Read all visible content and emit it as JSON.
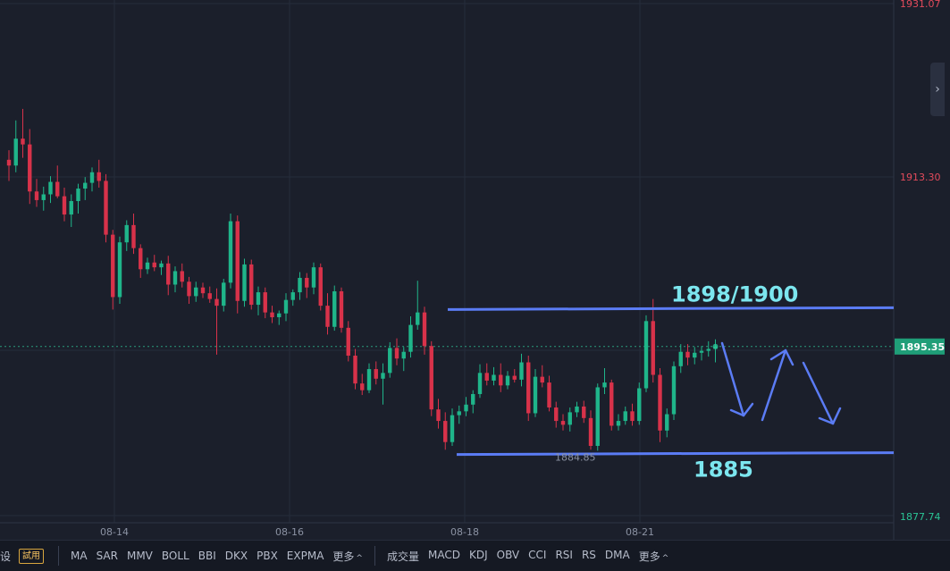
{
  "chart_data": {
    "type": "candlestick",
    "y_axis": {
      "ticks": [
        "1931.07",
        "1913.30",
        "1877.74"
      ],
      "current_price": "1895.35",
      "min": 1877.74,
      "max": 1931.07
    },
    "x_axis": {
      "ticks": [
        "08-14",
        "08-16",
        "08-18",
        "08-21"
      ]
    },
    "colors": {
      "up": "#1fb58a",
      "down": "#d8324a",
      "annotation": "#5b7cf5",
      "annotation_text": "#7ce6ef"
    },
    "annotations": {
      "resistance_label": "1898/1900",
      "resistance_level": 1899.3,
      "support_label": "1885",
      "support_level": 1884.2,
      "low_marker": "1884.85"
    },
    "candles": [
      [
        1914.8,
        1915.8,
        1912.6,
        1914.2
      ],
      [
        1914.2,
        1918.9,
        1913.5,
        1917.0
      ],
      [
        1917.0,
        1920.1,
        1915.0,
        1916.4
      ],
      [
        1916.4,
        1918.0,
        1910.2,
        1911.5
      ],
      [
        1911.5,
        1912.8,
        1909.9,
        1910.6
      ],
      [
        1910.6,
        1912.0,
        1909.5,
        1911.2
      ],
      [
        1911.2,
        1913.1,
        1910.3,
        1912.5
      ],
      [
        1912.5,
        1914.2,
        1910.8,
        1911.0
      ],
      [
        1911.0,
        1911.9,
        1908.4,
        1909.1
      ],
      [
        1909.1,
        1911.2,
        1907.8,
        1910.5
      ],
      [
        1910.5,
        1912.3,
        1909.2,
        1911.8
      ],
      [
        1911.8,
        1913.0,
        1910.6,
        1912.4
      ],
      [
        1912.4,
        1914.0,
        1911.5,
        1913.5
      ],
      [
        1913.5,
        1914.8,
        1911.9,
        1912.6
      ],
      [
        1912.6,
        1913.3,
        1906.2,
        1907.0
      ],
      [
        1907.0,
        1907.5,
        1899.2,
        1900.5
      ],
      [
        1900.5,
        1906.8,
        1899.8,
        1906.2
      ],
      [
        1906.2,
        1908.5,
        1905.3,
        1908.0
      ],
      [
        1908.0,
        1909.2,
        1905.0,
        1905.6
      ],
      [
        1905.6,
        1906.0,
        1902.5,
        1903.4
      ],
      [
        1903.4,
        1904.6,
        1902.9,
        1904.1
      ],
      [
        1904.1,
        1904.9,
        1903.2,
        1903.6
      ],
      [
        1903.6,
        1904.3,
        1902.8,
        1904.0
      ],
      [
        1904.0,
        1904.8,
        1900.7,
        1901.8
      ],
      [
        1901.8,
        1903.7,
        1901.0,
        1903.2
      ],
      [
        1903.2,
        1904.0,
        1901.5,
        1902.1
      ],
      [
        1902.1,
        1902.6,
        1899.8,
        1900.6
      ],
      [
        1900.6,
        1902.1,
        1900.0,
        1901.5
      ],
      [
        1901.5,
        1902.0,
        1900.4,
        1900.9
      ],
      [
        1900.9,
        1901.6,
        1899.9,
        1900.3
      ],
      [
        1900.3,
        1901.4,
        1894.5,
        1899.6
      ],
      [
        1899.6,
        1902.4,
        1899.0,
        1902.0
      ],
      [
        1902.0,
        1909.2,
        1901.4,
        1908.4
      ],
      [
        1908.4,
        1909.0,
        1898.8,
        1900.1
      ],
      [
        1900.1,
        1904.5,
        1899.5,
        1903.9
      ],
      [
        1903.9,
        1904.4,
        1899.2,
        1899.7
      ],
      [
        1899.7,
        1901.6,
        1898.6,
        1901.0
      ],
      [
        1901.0,
        1901.5,
        1898.3,
        1898.9
      ],
      [
        1898.9,
        1899.6,
        1897.8,
        1898.4
      ],
      [
        1898.4,
        1899.1,
        1897.6,
        1898.8
      ],
      [
        1898.8,
        1900.9,
        1898.0,
        1900.2
      ],
      [
        1900.2,
        1901.3,
        1899.6,
        1901.0
      ],
      [
        1901.0,
        1903.1,
        1900.2,
        1902.5
      ],
      [
        1902.5,
        1903.0,
        1900.4,
        1901.5
      ],
      [
        1901.5,
        1904.1,
        1900.8,
        1903.6
      ],
      [
        1903.6,
        1904.0,
        1899.1,
        1899.6
      ],
      [
        1899.6,
        1900.9,
        1896.6,
        1897.4
      ],
      [
        1897.4,
        1901.7,
        1897.0,
        1901.1
      ],
      [
        1901.1,
        1901.5,
        1896.8,
        1897.3
      ],
      [
        1897.3,
        1898.0,
        1893.8,
        1894.4
      ],
      [
        1894.4,
        1895.1,
        1890.9,
        1891.5
      ],
      [
        1891.5,
        1892.5,
        1890.3,
        1890.8
      ],
      [
        1890.8,
        1893.6,
        1890.5,
        1893.0
      ],
      [
        1893.0,
        1893.8,
        1891.4,
        1892.0
      ],
      [
        1892.0,
        1893.6,
        1889.3,
        1892.6
      ],
      [
        1892.6,
        1895.8,
        1892.1,
        1895.2
      ],
      [
        1895.2,
        1896.2,
        1893.4,
        1894.1
      ],
      [
        1894.1,
        1895.3,
        1892.8,
        1894.8
      ],
      [
        1894.8,
        1898.5,
        1894.2,
        1897.6
      ],
      [
        1897.6,
        1902.2,
        1897.1,
        1898.9
      ],
      [
        1898.9,
        1899.5,
        1894.5,
        1895.4
      ],
      [
        1895.4,
        1895.9,
        1888.1,
        1888.8
      ],
      [
        1888.8,
        1889.9,
        1886.8,
        1887.6
      ],
      [
        1887.6,
        1888.5,
        1884.6,
        1885.4
      ],
      [
        1885.4,
        1888.9,
        1885.0,
        1888.2
      ],
      [
        1888.2,
        1889.2,
        1887.3,
        1888.6
      ],
      [
        1888.6,
        1890.1,
        1888.1,
        1889.3
      ],
      [
        1889.3,
        1890.8,
        1888.4,
        1890.4
      ],
      [
        1890.4,
        1893.5,
        1890.0,
        1892.6
      ],
      [
        1892.6,
        1893.6,
        1891.3,
        1891.8
      ],
      [
        1891.8,
        1893.2,
        1891.3,
        1892.4
      ],
      [
        1892.4,
        1893.6,
        1890.6,
        1891.3
      ],
      [
        1891.3,
        1892.8,
        1890.9,
        1892.3
      ],
      [
        1892.3,
        1893.0,
        1891.6,
        1891.9
      ],
      [
        1891.9,
        1894.6,
        1891.2,
        1893.7
      ],
      [
        1893.7,
        1894.4,
        1887.6,
        1888.4
      ],
      [
        1888.4,
        1893.0,
        1888.0,
        1892.2
      ],
      [
        1892.2,
        1893.4,
        1891.1,
        1891.6
      ],
      [
        1891.6,
        1892.3,
        1888.6,
        1889.0
      ],
      [
        1889.0,
        1889.6,
        1886.9,
        1887.6
      ],
      [
        1887.6,
        1888.3,
        1886.6,
        1887.2
      ],
      [
        1887.2,
        1889.0,
        1886.5,
        1888.5
      ],
      [
        1888.5,
        1889.6,
        1888.0,
        1889.1
      ],
      [
        1889.1,
        1889.7,
        1887.4,
        1887.9
      ],
      [
        1887.9,
        1888.7,
        1884.6,
        1885.0
      ],
      [
        1885.0,
        1891.5,
        1884.5,
        1891.1
      ],
      [
        1891.1,
        1893.1,
        1890.4,
        1891.6
      ],
      [
        1891.6,
        1891.9,
        1886.6,
        1887.1
      ],
      [
        1887.1,
        1888.3,
        1886.6,
        1887.6
      ],
      [
        1887.6,
        1889.1,
        1887.2,
        1888.6
      ],
      [
        1888.6,
        1889.4,
        1887.1,
        1887.6
      ],
      [
        1887.6,
        1891.6,
        1887.2,
        1891.0
      ],
      [
        1891.0,
        1898.6,
        1890.6,
        1898.0
      ],
      [
        1898.0,
        1900.3,
        1891.6,
        1892.4
      ],
      [
        1892.4,
        1893.1,
        1885.4,
        1886.6
      ],
      [
        1886.6,
        1888.9,
        1885.9,
        1888.3
      ],
      [
        1888.3,
        1893.8,
        1887.7,
        1893.3
      ],
      [
        1893.3,
        1895.6,
        1892.6,
        1894.8
      ],
      [
        1894.8,
        1895.6,
        1893.4,
        1894.2
      ],
      [
        1894.2,
        1895.3,
        1893.5,
        1894.7
      ],
      [
        1894.7,
        1895.4,
        1893.9,
        1894.9
      ],
      [
        1894.9,
        1895.9,
        1894.3,
        1895.1
      ],
      [
        1895.1,
        1896.1,
        1893.7,
        1895.35
      ]
    ]
  },
  "toolbar": {
    "trial_badge": "試用",
    "left_items": [
      "MA",
      "SAR",
      "MMV",
      "BOLL",
      "BBI",
      "DKX",
      "PBX",
      "EXPMA"
    ],
    "left_more": "更多",
    "right_items": [
      "成交量",
      "MACD",
      "KDJ",
      "OBV",
      "CCI",
      "RSI",
      "RS",
      "DMA"
    ],
    "right_more": "更多"
  }
}
